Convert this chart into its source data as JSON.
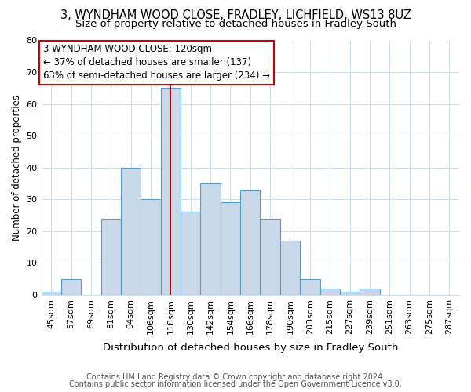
{
  "title1": "3, WYNDHAM WOOD CLOSE, FRADLEY, LICHFIELD, WS13 8UZ",
  "title2": "Size of property relative to detached houses in Fradley South",
  "xlabel": "Distribution of detached houses by size in Fradley South",
  "ylabel": "Number of detached properties",
  "categories": [
    "45sqm",
    "57sqm",
    "69sqm",
    "81sqm",
    "94sqm",
    "106sqm",
    "118sqm",
    "130sqm",
    "142sqm",
    "154sqm",
    "166sqm",
    "178sqm",
    "190sqm",
    "203sqm",
    "215sqm",
    "227sqm",
    "239sqm",
    "251sqm",
    "263sqm",
    "275sqm",
    "287sqm"
  ],
  "values": [
    1,
    5,
    0,
    24,
    40,
    30,
    65,
    26,
    35,
    29,
    33,
    24,
    17,
    5,
    2,
    1,
    2,
    0,
    0,
    0,
    0
  ],
  "bar_color": "#c9d9ea",
  "bar_edge_color": "#5a9ec8",
  "vline_x": 6,
  "vline_color": "#cc0000",
  "annotation_text": "3 WYNDHAM WOOD CLOSE: 120sqm\n← 37% of detached houses are smaller (137)\n63% of semi-detached houses are larger (234) →",
  "annotation_box_color": "#ffffff",
  "annotation_box_edge": "#cc0000",
  "ylim": [
    0,
    80
  ],
  "yticks": [
    0,
    10,
    20,
    30,
    40,
    50,
    60,
    70,
    80
  ],
  "footnote1": "Contains HM Land Registry data © Crown copyright and database right 2024.",
  "footnote2": "Contains public sector information licensed under the Open Government Licence v3.0.",
  "bg_color": "#ffffff",
  "plot_bg_color": "#ffffff",
  "title1_fontsize": 10.5,
  "title2_fontsize": 9.5,
  "xlabel_fontsize": 9.5,
  "ylabel_fontsize": 8.5,
  "tick_fontsize": 8,
  "annotation_fontsize": 8.5,
  "footnote_fontsize": 7.0
}
